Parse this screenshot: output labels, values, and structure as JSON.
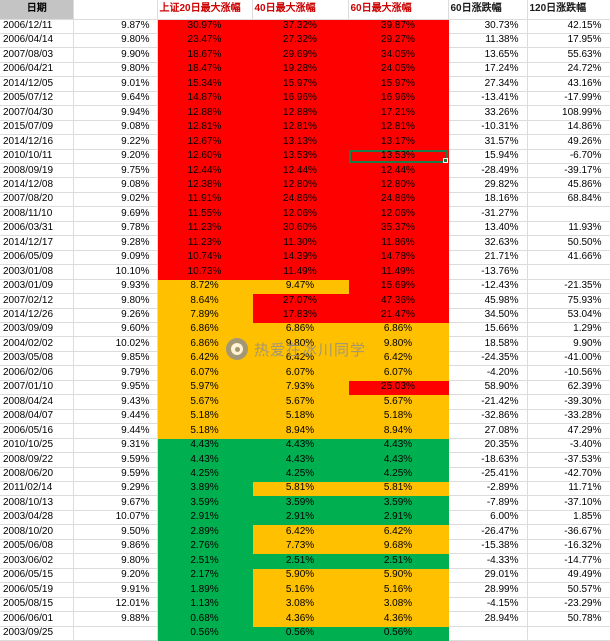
{
  "app": {
    "kind": "spreadsheet-screenshot",
    "description": "Excel-style table of dates with subsequent max gains, color coded"
  },
  "colors": {
    "fill_red": "#fe0000",
    "fill_yellow": "#ffc000",
    "fill_green": "#00b050",
    "header_red_text": "#cc0000",
    "date_header_bg": "#c4c4c4",
    "gridline": "#dcdcdc",
    "selection_border": "#1c7c46",
    "watermark_gray": "#8f8f8f"
  },
  "watermark": {
    "icon": "weibo-eye-logo",
    "text": "热爱在冰川同学"
  },
  "header": {
    "columns": [
      "日期",
      "",
      "上证20日最大涨幅",
      "40日最大涨幅",
      "60日最大涨幅",
      "60日涨跌幅",
      "120日涨跌幅"
    ]
  },
  "table": {
    "column_keys": [
      "date-cell",
      "day-change-cell",
      "max20-cell",
      "max40-cell",
      "max60-cell",
      "chg60-cell",
      "chg120-cell"
    ],
    "selection": {
      "row": 9,
      "col": 4,
      "value": "13.53%"
    },
    "fill_legend": {
      "R": "red",
      "Y": "yellow",
      "G": "green"
    },
    "rows": [
      {
        "cells": [
          "2006/12/11",
          "9.87%",
          "30.97%",
          "37.32%",
          "39.87%",
          "30.73%",
          "42.15%"
        ],
        "fills": "RRR"
      },
      {
        "cells": [
          "2006/04/14",
          "9.80%",
          "23.47%",
          "27.32%",
          "29.27%",
          "11.38%",
          "17.95%"
        ],
        "fills": "RRR"
      },
      {
        "cells": [
          "2007/08/03",
          "9.90%",
          "18.67%",
          "29.69%",
          "34.05%",
          "13.65%",
          "55.63%"
        ],
        "fills": "RRR"
      },
      {
        "cells": [
          "2006/04/21",
          "9.80%",
          "18.47%",
          "19.28%",
          "24.05%",
          "17.24%",
          "24.72%"
        ],
        "fills": "RRR"
      },
      {
        "cells": [
          "2014/12/05",
          "9.01%",
          "15.34%",
          "15.97%",
          "15.97%",
          "27.34%",
          "43.16%"
        ],
        "fills": "RRR"
      },
      {
        "cells": [
          "2005/07/12",
          "9.64%",
          "14.87%",
          "16.96%",
          "16.96%",
          "-13.41%",
          "-17.99%"
        ],
        "fills": "RRR"
      },
      {
        "cells": [
          "2007/04/30",
          "9.94%",
          "12.88%",
          "12.88%",
          "17.21%",
          "33.26%",
          "108.99%"
        ],
        "fills": "RRR"
      },
      {
        "cells": [
          "2015/07/09",
          "9.08%",
          "12.81%",
          "12.81%",
          "12.81%",
          "-10.31%",
          "14.86%"
        ],
        "fills": "RRR"
      },
      {
        "cells": [
          "2014/12/16",
          "9.22%",
          "12.67%",
          "13.13%",
          "13.17%",
          "31.57%",
          "49.26%"
        ],
        "fills": "RRR"
      },
      {
        "cells": [
          "2010/10/11",
          "9.20%",
          "12.60%",
          "13.53%",
          "13.53%",
          "15.94%",
          "-6.70%"
        ],
        "fills": "RRR"
      },
      {
        "cells": [
          "2008/09/19",
          "9.75%",
          "12.44%",
          "12.44%",
          "12.44%",
          "-28.49%",
          "-39.17%"
        ],
        "fills": "RRR"
      },
      {
        "cells": [
          "2014/12/08",
          "9.08%",
          "12.38%",
          "12.80%",
          "12.80%",
          "29.82%",
          "45.86%"
        ],
        "fills": "RRR"
      },
      {
        "cells": [
          "2007/08/20",
          "9.02%",
          "11.91%",
          "24.86%",
          "24.86%",
          "18.16%",
          "68.84%"
        ],
        "fills": "RRR"
      },
      {
        "cells": [
          "2008/11/10",
          "9.69%",
          "11.55%",
          "12.06%",
          "12.06%",
          "-31.27%",
          ""
        ],
        "fills": "RRR"
      },
      {
        "cells": [
          "2006/03/31",
          "9.78%",
          "11.23%",
          "30.60%",
          "35.37%",
          "13.40%",
          "11.93%"
        ],
        "fills": "RRR"
      },
      {
        "cells": [
          "2014/12/17",
          "9.28%",
          "11.23%",
          "11.30%",
          "11.86%",
          "32.63%",
          "50.50%"
        ],
        "fills": "RRR"
      },
      {
        "cells": [
          "2006/05/09",
          "9.09%",
          "10.74%",
          "14.39%",
          "14.78%",
          "21.71%",
          "41.66%"
        ],
        "fills": "RRR"
      },
      {
        "cells": [
          "2003/01/08",
          "10.10%",
          "10.73%",
          "11.49%",
          "11.49%",
          "-13.76%",
          ""
        ],
        "fills": "RRR"
      },
      {
        "cells": [
          "2003/01/09",
          "9.93%",
          "8.72%",
          "9.47%",
          "15.69%",
          "-12.43%",
          "-21.35%"
        ],
        "fills": "YYR"
      },
      {
        "cells": [
          "2007/02/12",
          "9.80%",
          "8.64%",
          "27.07%",
          "47.36%",
          "45.98%",
          "75.93%"
        ],
        "fills": "YRR"
      },
      {
        "cells": [
          "2014/12/26",
          "9.26%",
          "7.89%",
          "17.83%",
          "21.47%",
          "34.50%",
          "53.04%"
        ],
        "fills": "YRR"
      },
      {
        "cells": [
          "2003/09/09",
          "9.60%",
          "6.86%",
          "6.86%",
          "6.86%",
          "15.66%",
          "1.29%"
        ],
        "fills": "YYY"
      },
      {
        "cells": [
          "2004/02/02",
          "10.02%",
          "6.86%",
          "9.80%",
          "9.80%",
          "18.58%",
          "9.90%"
        ],
        "fills": "YYY"
      },
      {
        "cells": [
          "2003/05/08",
          "9.85%",
          "6.42%",
          "6.42%",
          "6.42%",
          "-24.35%",
          "-41.00%"
        ],
        "fills": "YYY"
      },
      {
        "cells": [
          "2006/02/06",
          "9.79%",
          "6.07%",
          "6.07%",
          "6.07%",
          "-4.20%",
          "-10.56%"
        ],
        "fills": "YYY"
      },
      {
        "cells": [
          "2007/01/10",
          "9.95%",
          "5.97%",
          "7.93%",
          "25.03%",
          "58.90%",
          "62.39%"
        ],
        "fills": "YYR"
      },
      {
        "cells": [
          "2008/04/24",
          "9.43%",
          "5.67%",
          "5.67%",
          "5.67%",
          "-21.42%",
          "-39.30%"
        ],
        "fills": "YYY"
      },
      {
        "cells": [
          "2008/04/07",
          "9.44%",
          "5.18%",
          "5.18%",
          "5.18%",
          "-32.86%",
          "-33.28%"
        ],
        "fills": "YYY"
      },
      {
        "cells": [
          "2006/05/16",
          "9.44%",
          "5.18%",
          "8.94%",
          "8.94%",
          "27.08%",
          "47.29%"
        ],
        "fills": "YYY"
      },
      {
        "cells": [
          "2010/10/25",
          "9.31%",
          "4.43%",
          "4.43%",
          "4.43%",
          "20.35%",
          "-3.40%"
        ],
        "fills": "GGG"
      },
      {
        "cells": [
          "2008/09/22",
          "9.59%",
          "4.43%",
          "4.43%",
          "4.43%",
          "-18.63%",
          "-37.53%"
        ],
        "fills": "GGG"
      },
      {
        "cells": [
          "2008/06/20",
          "9.59%",
          "4.25%",
          "4.25%",
          "4.25%",
          "-25.41%",
          "-42.70%"
        ],
        "fills": "GGG"
      },
      {
        "cells": [
          "2011/02/14",
          "9.29%",
          "3.89%",
          "5.81%",
          "5.81%",
          "-2.89%",
          "11.71%"
        ],
        "fills": "GYY"
      },
      {
        "cells": [
          "2008/10/13",
          "9.67%",
          "3.59%",
          "3.59%",
          "3.59%",
          "-7.89%",
          "-37.10%"
        ],
        "fills": "GGG"
      },
      {
        "cells": [
          "2003/04/28",
          "10.07%",
          "2.91%",
          "2.91%",
          "2.91%",
          "6.00%",
          "1.85%"
        ],
        "fills": "GGG"
      },
      {
        "cells": [
          "2008/10/20",
          "9.50%",
          "2.89%",
          "6.42%",
          "6.42%",
          "-26.47%",
          "-36.67%"
        ],
        "fills": "GYY"
      },
      {
        "cells": [
          "2005/06/08",
          "9.86%",
          "2.76%",
          "7.73%",
          "9.68%",
          "-15.38%",
          "-16.32%"
        ],
        "fills": "GYY"
      },
      {
        "cells": [
          "2003/06/02",
          "9.80%",
          "2.51%",
          "2.51%",
          "2.51%",
          "-4.33%",
          "-14.77%"
        ],
        "fills": "GGG"
      },
      {
        "cells": [
          "2006/05/15",
          "9.20%",
          "2.17%",
          "5.90%",
          "5.90%",
          "29.01%",
          "49.49%"
        ],
        "fills": "GYY"
      },
      {
        "cells": [
          "2006/05/19",
          "9.91%",
          "1.89%",
          "5.16%",
          "5.16%",
          "28.99%",
          "50.57%"
        ],
        "fills": "GYY"
      },
      {
        "cells": [
          "2005/08/15",
          "12.01%",
          "1.13%",
          "3.08%",
          "3.08%",
          "-4.15%",
          "-23.29%"
        ],
        "fills": "GYY"
      },
      {
        "cells": [
          "2006/06/01",
          "9.88%",
          "0.68%",
          "4.36%",
          "4.36%",
          "28.94%",
          "50.78%"
        ],
        "fills": "GYY"
      },
      {
        "cells": [
          "2003/09/25",
          "",
          "0.56%",
          "0.56%",
          "0.56%",
          "",
          ""
        ],
        "fills": "GGG"
      }
    ]
  }
}
